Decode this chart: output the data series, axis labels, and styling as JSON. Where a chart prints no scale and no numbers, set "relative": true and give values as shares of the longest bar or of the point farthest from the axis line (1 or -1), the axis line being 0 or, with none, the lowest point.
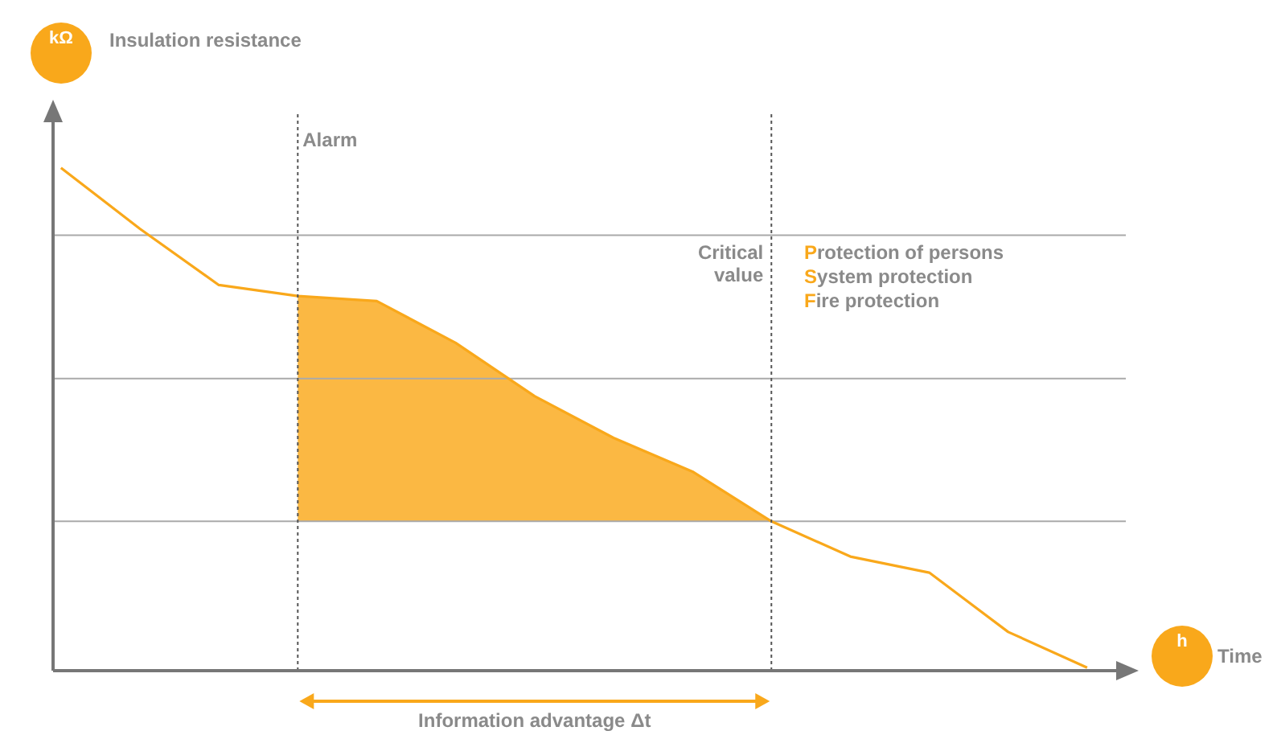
{
  "chart_data": {
    "type": "line",
    "relative": true,
    "xlabel": "h",
    "marker": "none",
    "line_style": "solid",
    "categories": [
      null,
      null,
      null,
      null,
      null,
      null,
      null,
      null,
      null,
      null,
      null,
      null,
      null,
      null
    ],
    "series": [
      {
        "color": "#f9a81b",
        "values": [
          1.0,
          0.879,
          0.767,
          0.745,
          0.735,
          0.652,
          0.546,
          0.463,
          0.396,
          0.297,
          0.227,
          0.195,
          0.077,
          0.006
        ]
      },
      {
        "type": "area",
        "color": "#fbb843",
        "values": [
          null,
          null,
          null,
          0.745,
          0.735,
          0.652,
          0.546,
          0.463,
          0.396,
          0.297,
          null,
          null,
          null,
          null
        ]
      }
    ],
    "ref_lines": [
      {
        "axis": "y",
        "value": 0.866,
        "color": "#aaaaaa",
        "line_style": "solid"
      },
      {
        "axis": "y",
        "value": 0.581,
        "color": "#aaaaaa",
        "line_style": "solid"
      },
      {
        "axis": "y",
        "value": 0.297,
        "color": "#aaaaaa",
        "line_style": "solid"
      },
      {
        "axis": "x",
        "label": "Alarm",
        "color": "#555555",
        "line_style": "dotted"
      },
      {
        "axis": "x",
        "label": "Critical value",
        "color": "#555555",
        "line_style": "dotted"
      }
    ],
    "annotations": [
      "Insulation resistance",
      "Time",
      "Protection of persons",
      "System protection",
      "Fire protection",
      "Information advantage Δt",
      "kΩ"
    ]
  }
}
